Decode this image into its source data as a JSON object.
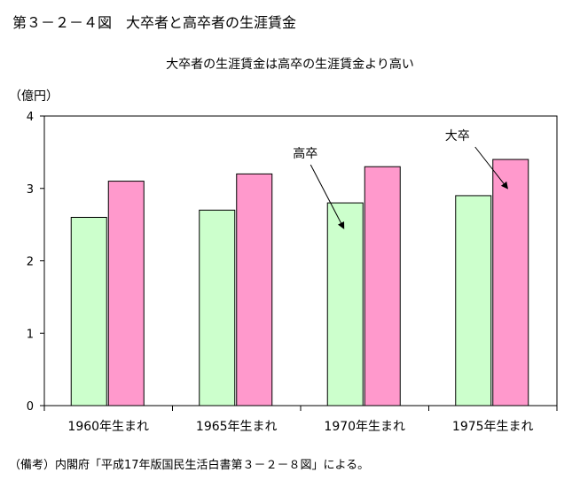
{
  "figure": {
    "title": "第３－２－４図　大卒者と高卒者の生涯賃金",
    "note": "（備考）内閣府「平成17年版国民生活白書第３－２－８図」による。"
  },
  "chart_data": {
    "type": "bar",
    "title": "大卒者の生涯賃金は高卒の生涯賃金より高い",
    "unit_label": "（億円）",
    "categories": [
      "1960年生まれ",
      "1965年生まれ",
      "1970年生まれ",
      "1975年生まれ"
    ],
    "series": [
      {
        "name": "高卒",
        "values": [
          2.6,
          2.7,
          2.8,
          2.9
        ],
        "color": "#ccffcc"
      },
      {
        "name": "大卒",
        "values": [
          3.1,
          3.2,
          3.3,
          3.4
        ],
        "color": "#ff99cc"
      }
    ],
    "ylim": [
      0,
      4
    ],
    "yticks": [
      0,
      1,
      2,
      3,
      4
    ],
    "grid": false,
    "annotations": [
      {
        "text": "高卒",
        "series": 0,
        "category": 2
      },
      {
        "text": "大卒",
        "series": 1,
        "category": 3
      }
    ]
  }
}
